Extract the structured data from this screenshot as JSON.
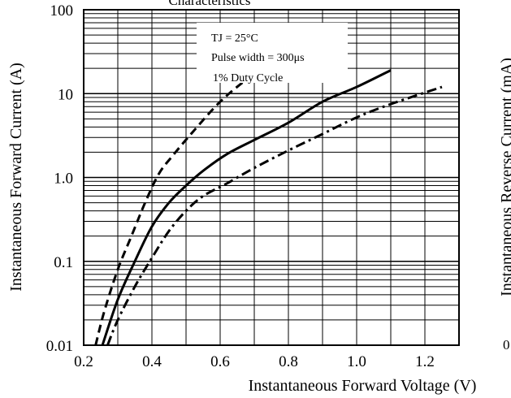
{
  "chart_data": {
    "type": "line",
    "title": "Characteristics",
    "xlabel": "Instantaneous Forward Voltage (V)",
    "ylabel": "Instantaneous Forward Current (A)",
    "xlim": [
      0.2,
      1.3
    ],
    "ylim": [
      0.01,
      100
    ],
    "y_scale": "log",
    "grid": true,
    "x_ticks": [
      {
        "value": 0.2,
        "label": "0.2"
      },
      {
        "value": 0.4,
        "label": "0.4"
      },
      {
        "value": 0.6,
        "label": "0.6"
      },
      {
        "value": 0.8,
        "label": "0.8"
      },
      {
        "value": 1.0,
        "label": "1.0"
      },
      {
        "value": 1.2,
        "label": "1.2"
      }
    ],
    "y_ticks": [
      {
        "value": 0.01,
        "label": "0.01"
      },
      {
        "value": 0.1,
        "label": "0.1"
      },
      {
        "value": 1,
        "label": "1.0"
      },
      {
        "value": 10,
        "label": "10"
      },
      {
        "value": 100,
        "label": "100"
      }
    ],
    "annotations": [
      "TJ = 25°C",
      "Pulse width = 300μs",
      "1% Duty Cycle"
    ],
    "series": [
      {
        "style": "dashed",
        "x": [
          0.235,
          0.26,
          0.3,
          0.34,
          0.38,
          0.42,
          0.46,
          0.52,
          0.6,
          0.68,
          0.76,
          0.82
        ],
        "y": [
          0.01,
          0.025,
          0.08,
          0.2,
          0.5,
          1.1,
          1.8,
          3.5,
          8.0,
          15,
          25,
          36
        ]
      },
      {
        "style": "solid",
        "x": [
          0.255,
          0.3,
          0.35,
          0.4,
          0.45,
          0.5,
          0.55,
          0.62,
          0.7,
          0.8,
          0.9,
          1.0,
          1.1
        ],
        "y": [
          0.01,
          0.035,
          0.1,
          0.26,
          0.5,
          0.8,
          1.2,
          1.9,
          2.8,
          4.5,
          8.0,
          12,
          19
        ]
      },
      {
        "style": "dash-dot",
        "x": [
          0.27,
          0.3,
          0.35,
          0.4,
          0.45,
          0.5,
          0.55,
          0.62,
          0.7,
          0.8,
          0.9,
          1.0,
          1.1,
          1.25
        ],
        "y": [
          0.01,
          0.02,
          0.05,
          0.11,
          0.23,
          0.4,
          0.6,
          0.85,
          1.3,
          2.1,
          3.3,
          5.2,
          7.5,
          12
        ]
      }
    ]
  },
  "right_panel": {
    "ylabel_fragment": "Instantaneous Reverse Current (mA)",
    "tick_fragment": "0"
  }
}
